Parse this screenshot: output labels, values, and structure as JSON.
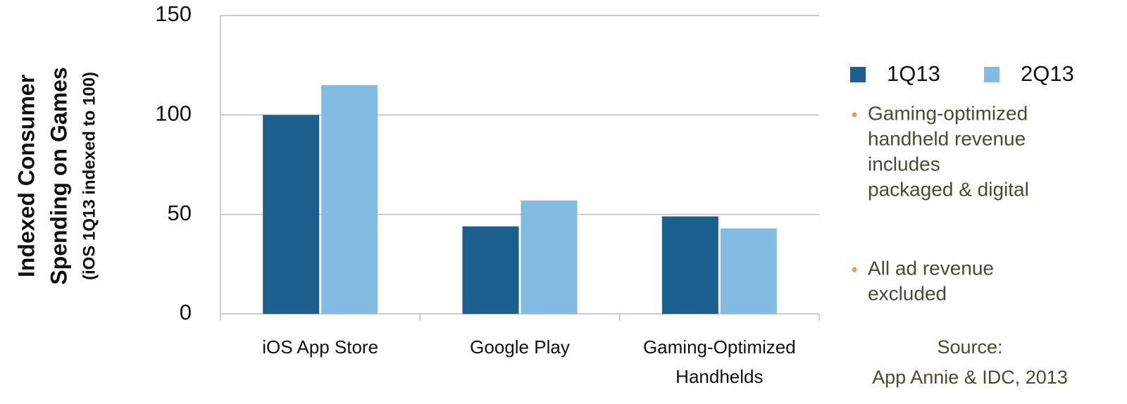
{
  "chart_data": {
    "type": "bar",
    "y_label": [
      "Indexed Consumer",
      "Spending on Games"
    ],
    "y_label_sub": "(iOS 1Q13 indexed to 100)",
    "categories": [
      "iOS App Store",
      "Google Play",
      "Gaming-Optimized Handhelds"
    ],
    "series": [
      {
        "name": "1Q13",
        "color": "#1b5f8f",
        "values": [
          100,
          44,
          49
        ]
      },
      {
        "name": "2Q13",
        "color": "#83bce2",
        "values": [
          115,
          57,
          43
        ]
      }
    ],
    "ylim": [
      0,
      150
    ],
    "yticks": [
      0,
      50,
      100,
      150
    ],
    "grid": true,
    "notes": [
      [
        "Gaming-optimized",
        "handheld revenue",
        "includes",
        "packaged & digital"
      ],
      [
        "All ad revenue",
        "excluded"
      ]
    ],
    "source": [
      "Source:",
      "App Annie & IDC, 2013"
    ]
  }
}
